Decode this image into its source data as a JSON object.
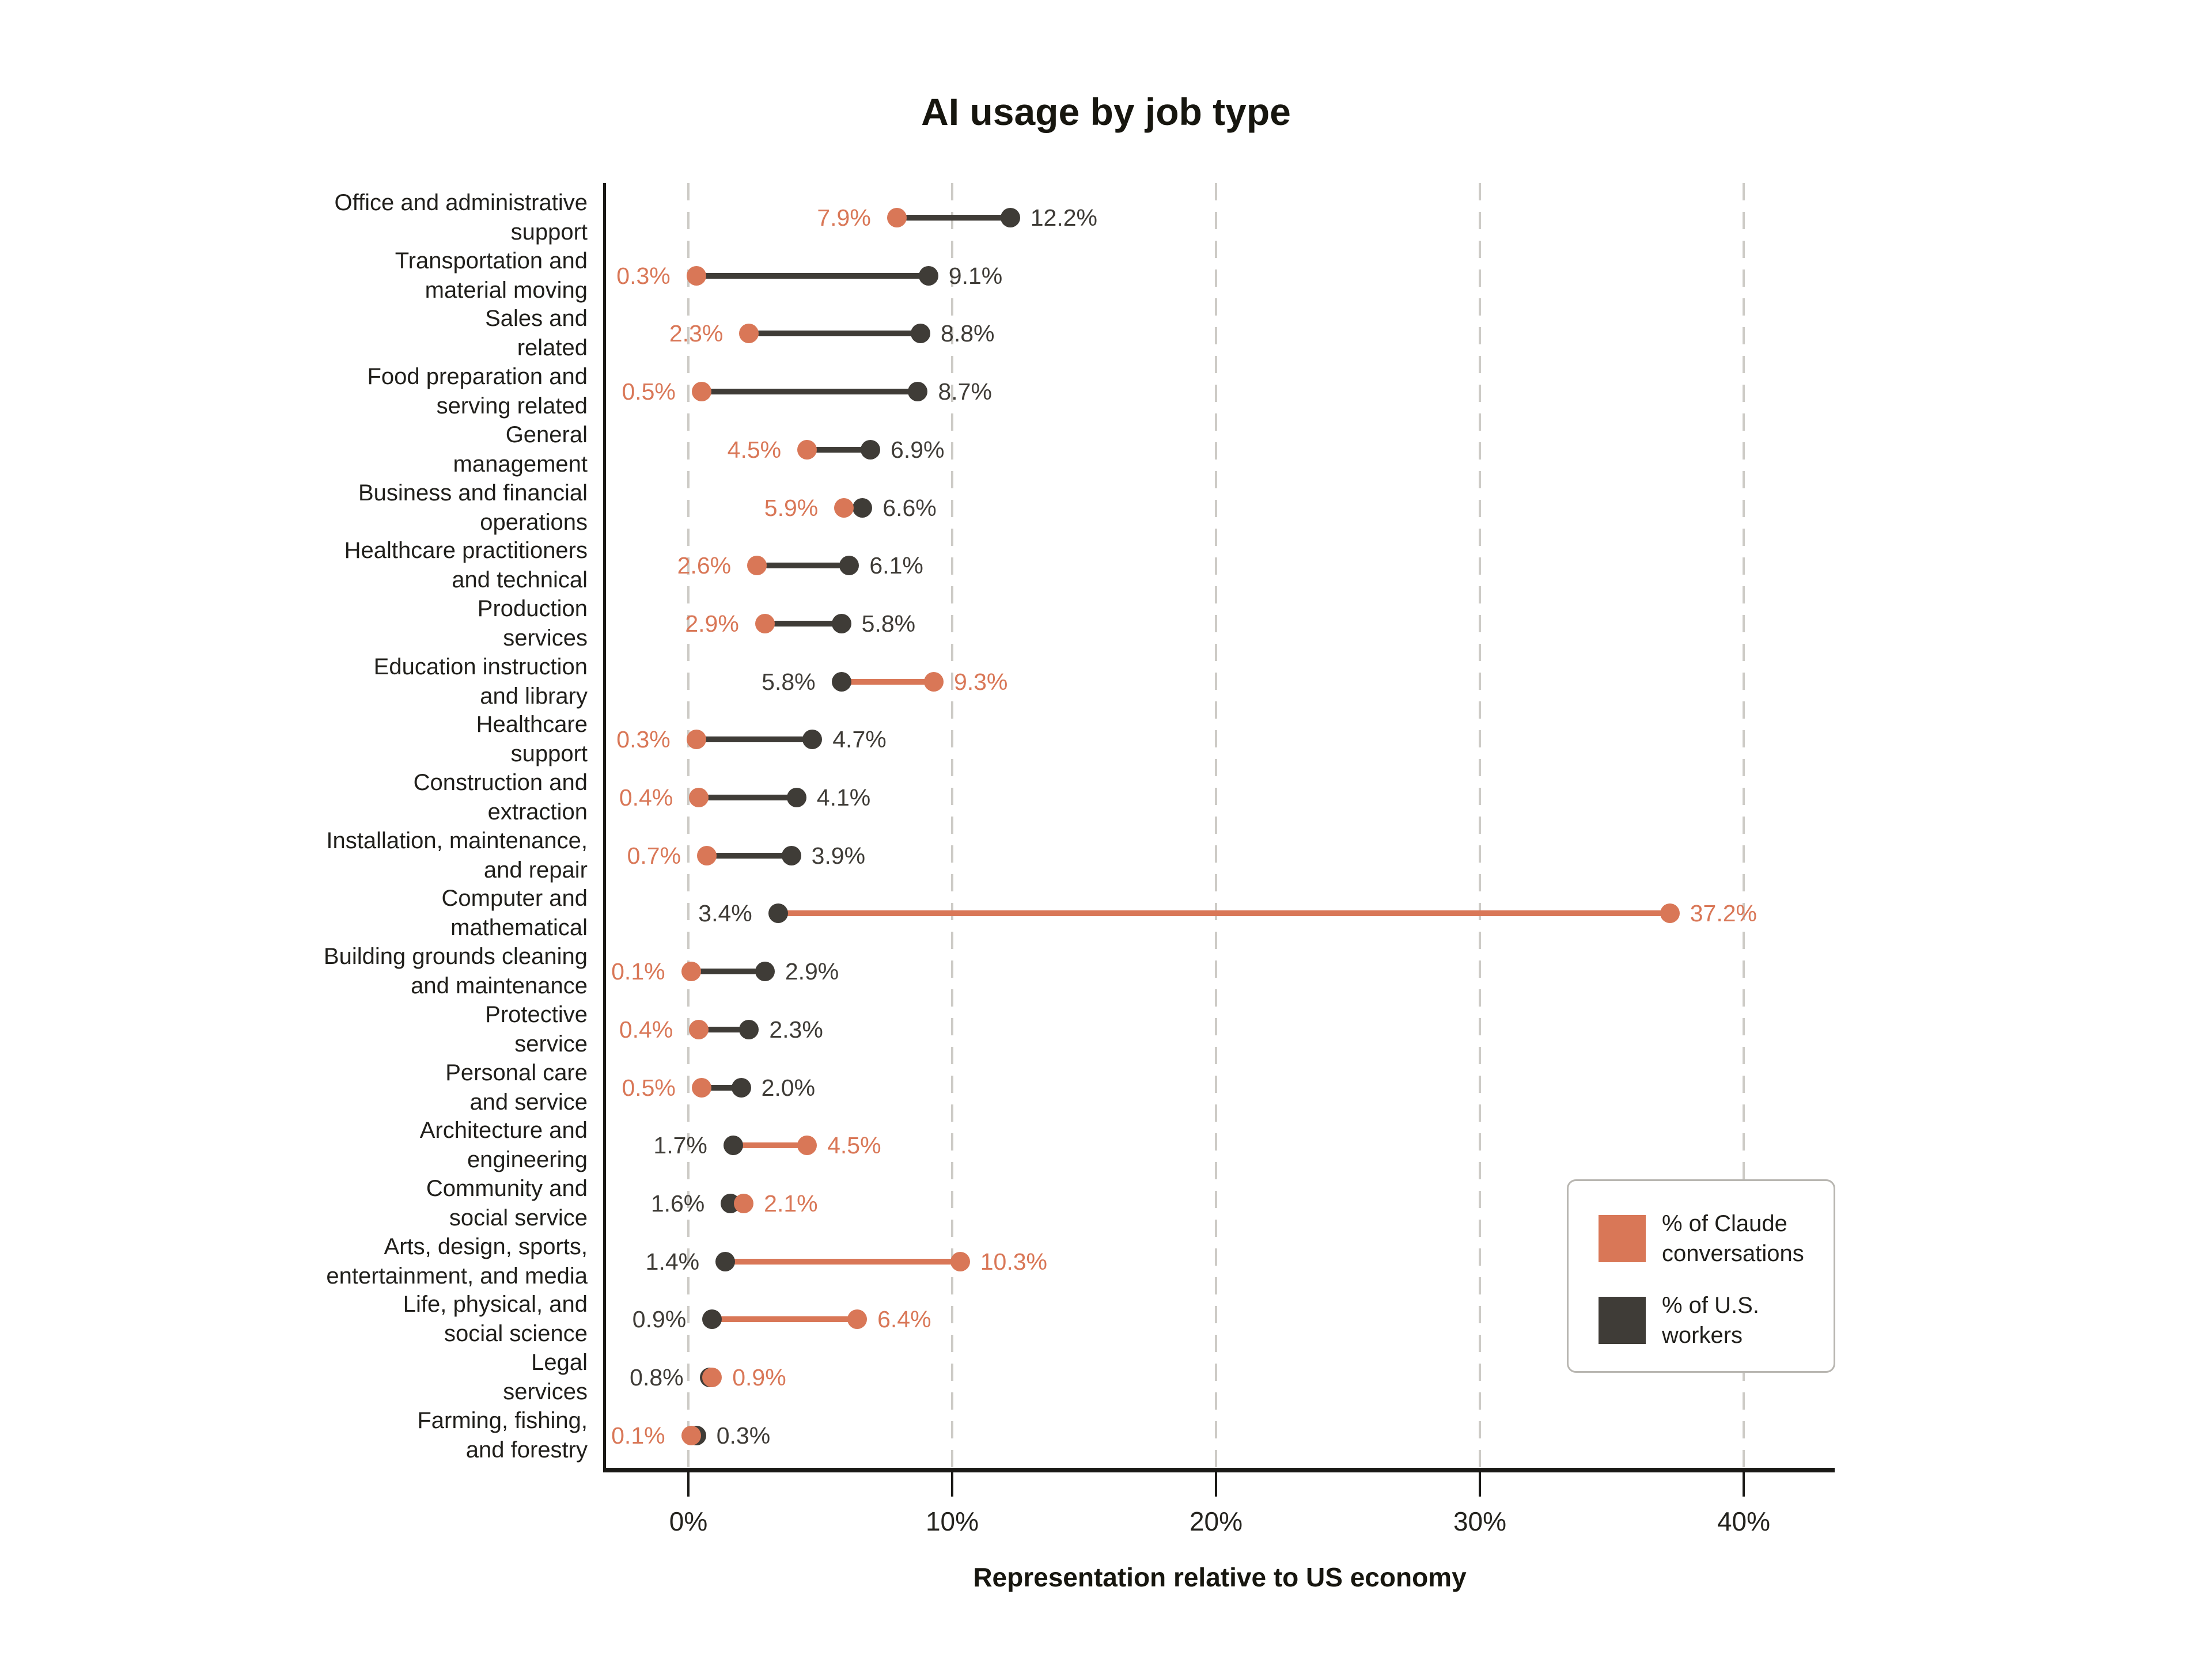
{
  "title": "AI usage by job type",
  "colors": {
    "claude_orange": "#D97757",
    "workers_gray": "#3F3C37",
    "grid_gray": "#CDCBC6",
    "axis_black": "#1A1916",
    "category_text": "#201F1B",
    "legend_border": "#B8B6B1",
    "background": "#FFFFFF"
  },
  "chart_data": {
    "type": "scatter",
    "variant": "dumbbell-dot-plot",
    "title": "AI usage by job type",
    "xlabel": "Representation relative to US economy",
    "grid": "vertical-dashed",
    "xlim": [
      -4,
      44
    ],
    "x_ticks": [
      "0%",
      "10%",
      "20%",
      "30%",
      "40%"
    ],
    "x_tick_values": [
      0,
      10,
      20,
      30,
      40
    ],
    "categories": [
      "Office and administrative support",
      "Transportation and material moving",
      "Sales and related",
      "Food preparation and serving related",
      "General management",
      "Business and financial operations",
      "Healthcare practitioners and technical",
      "Production services",
      "Education instruction and library",
      "Healthcare support",
      "Construction and extraction",
      "Installation, maintenance, and repair",
      "Computer and mathematical",
      "Building grounds cleaning and maintenance",
      "Protective service",
      "Personal care and service",
      "Architecture and engineering",
      "Community and social service",
      "Arts, design, sports, entertainment, and media",
      "Life, physical, and social science",
      "Legal services",
      "Farming, fishing, and forestry"
    ],
    "category_label_lines": [
      [
        "Office and administrative",
        "support"
      ],
      [
        "Transportation and",
        "material moving"
      ],
      [
        "Sales and",
        "related"
      ],
      [
        "Food preparation and",
        "serving related"
      ],
      [
        "General",
        "management"
      ],
      [
        "Business and financial",
        "operations"
      ],
      [
        "Healthcare practitioners",
        "and technical"
      ],
      [
        "Production",
        "services"
      ],
      [
        "Education instruction",
        "and library"
      ],
      [
        "Healthcare",
        "support"
      ],
      [
        "Construction and",
        "extraction"
      ],
      [
        "Installation, maintenance,",
        "and repair"
      ],
      [
        "Computer and",
        "mathematical"
      ],
      [
        "Building grounds cleaning",
        "and maintenance"
      ],
      [
        "Protective",
        "service"
      ],
      [
        "Personal care",
        "and service"
      ],
      [
        "Architecture and",
        "engineering"
      ],
      [
        "Community and",
        "social service"
      ],
      [
        "Arts, design, sports,",
        "entertainment, and media"
      ],
      [
        "Life, physical, and",
        "social science"
      ],
      [
        "Legal",
        "services"
      ],
      [
        "Farming, fishing,",
        "and forestry"
      ]
    ],
    "series": [
      {
        "name": "% of Claude conversations",
        "color": "#D97757",
        "values": [
          7.9,
          0.3,
          2.3,
          0.5,
          4.5,
          5.9,
          2.6,
          2.9,
          9.3,
          0.3,
          0.4,
          0.7,
          37.2,
          0.1,
          0.4,
          0.5,
          4.5,
          2.1,
          10.3,
          6.4,
          0.9,
          0.1
        ],
        "labels": [
          "7.9%",
          "0.3%",
          "2.3%",
          "0.5%",
          "4.5%",
          "5.9%",
          "2.6%",
          "2.9%",
          "9.3%",
          "0.3%",
          "0.4%",
          "0.7%",
          "37.2%",
          "0.1%",
          "0.4%",
          "0.5%",
          "4.5%",
          "2.1%",
          "10.3%",
          "6.4%",
          "0.9%",
          "0.1%"
        ]
      },
      {
        "name": "% of U.S. workers",
        "color": "#3F3C37",
        "values": [
          12.2,
          9.1,
          8.8,
          8.7,
          6.9,
          6.6,
          6.1,
          5.8,
          5.8,
          4.7,
          4.1,
          3.9,
          3.4,
          2.9,
          2.3,
          2.0,
          1.7,
          1.6,
          1.4,
          0.9,
          0.8,
          0.3
        ],
        "labels": [
          "12.2%",
          "9.1%",
          "8.8%",
          "8.7%",
          "6.9%",
          "6.6%",
          "6.1%",
          "5.8%",
          "5.8%",
          "4.7%",
          "4.1%",
          "3.9%",
          "3.4%",
          "2.9%",
          "2.3%",
          "2.0%",
          "1.7%",
          "1.6%",
          "1.4%",
          "0.9%",
          "0.8%",
          "0.3%"
        ]
      }
    ],
    "legend": {
      "position": "lower right",
      "items": [
        {
          "label": "% of Claude conversations",
          "label_lines": [
            "% of Claude",
            "conversations"
          ],
          "color": "#D97757"
        },
        {
          "label": "% of U.S. workers",
          "label_lines": [
            "% of U.S.",
            "workers"
          ],
          "color": "#3F3C37"
        }
      ]
    }
  }
}
